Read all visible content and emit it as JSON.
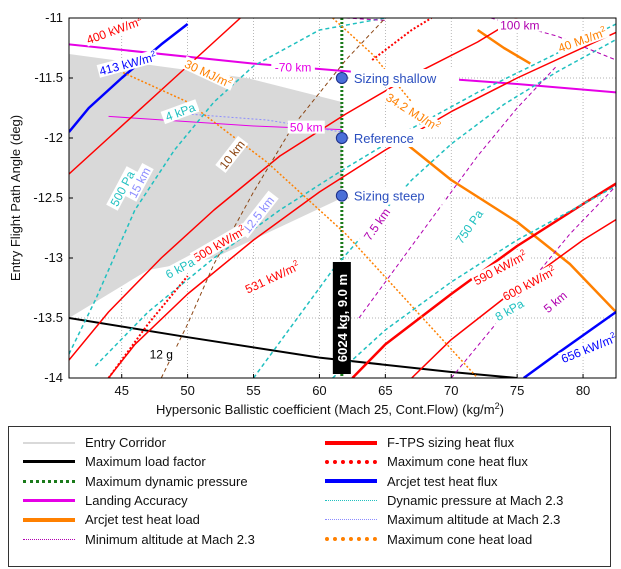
{
  "chart_data": {
    "type": "line",
    "xlabel": "Hypersonic Ballistic coefficient (Mach 25, Cont.Flow) (kg/m",
    "xlabel_sup": "2",
    "xlabel_end": ")",
    "ylabel": "Entry Flight Path Angle (deg)",
    "xlim": [
      41,
      82.5
    ],
    "ylim": [
      -14,
      -11
    ],
    "xticks": [
      45,
      50,
      55,
      60,
      65,
      70,
      75,
      80
    ],
    "yticks": [
      -11,
      -11.5,
      -12,
      -12.5,
      -13,
      -13.5,
      -14
    ],
    "grid": true,
    "corridor": [
      [
        41,
        -11.3
      ],
      [
        54.5,
        -11.5
      ],
      [
        61.7,
        -11.7
      ],
      [
        61.7,
        -12.5
      ],
      [
        52,
        -13
      ],
      [
        47,
        -13.1
      ],
      [
        41,
        -13.5
      ]
    ],
    "series": [
      {
        "name": "Maximum load factor",
        "color": "#000000",
        "style": "solid",
        "width": 2,
        "points": [
          [
            41,
            -13.5
          ],
          [
            50,
            -13.66
          ],
          [
            60,
            -13.83
          ],
          [
            70,
            -13.95
          ],
          [
            75,
            -14
          ]
        ]
      },
      {
        "name": "Maximum dynamic pressure",
        "color": "#1a7a1a",
        "style": "dotted",
        "width": 3,
        "points": [
          [
            61.7,
            -11
          ],
          [
            61.7,
            -14
          ]
        ]
      },
      {
        "name": "Landing Accuracy",
        "color": "#e600e6",
        "style": "solid",
        "width": 2,
        "points": [
          [
            41,
            -11.22
          ],
          [
            55,
            -11.38
          ],
          [
            65,
            -11.47
          ],
          [
            75,
            -11.55
          ],
          [
            82.5,
            -11.62
          ]
        ]
      },
      {
        "name": "Landing Accuracy",
        "color": "#e600e6",
        "style": "solid",
        "width": 1,
        "points": [
          [
            44,
            -11.82
          ],
          [
            55,
            -11.9
          ],
          [
            61.7,
            -11.93
          ]
        ]
      },
      {
        "name": "Arcjet test heat load",
        "color": "#ff8000",
        "style": "solid",
        "width": 2.5,
        "points": [
          [
            65.7,
            -11.97
          ],
          [
            70,
            -12.35
          ],
          [
            75,
            -12.7
          ],
          [
            79,
            -13.05
          ],
          [
            82.5,
            -13.45
          ]
        ]
      },
      {
        "name": "Arcjet test heat load",
        "color": "#ff8000",
        "style": "solid",
        "width": 2.5,
        "points": [
          [
            72,
            -11.1
          ],
          [
            74,
            -11.25
          ],
          [
            76,
            -11.38
          ]
        ]
      },
      {
        "name": "F-TPS sizing heat flux",
        "color": "#ff0000",
        "style": "solid",
        "width": 1.5,
        "points": [
          [
            41,
            -12.3
          ],
          [
            44,
            -12
          ],
          [
            48,
            -11.6
          ],
          [
            52,
            -11.2
          ],
          [
            54,
            -11
          ]
        ]
      },
      {
        "name": "F-TPS sizing heat flux",
        "color": "#ff0000",
        "style": "solid",
        "width": 1.5,
        "points": [
          [
            41,
            -13.85
          ],
          [
            44,
            -13.45
          ],
          [
            48,
            -13
          ],
          [
            52,
            -12.6
          ],
          [
            57,
            -12.15
          ],
          [
            62,
            -11.8
          ],
          [
            67,
            -11.48
          ],
          [
            72,
            -11.2
          ],
          [
            75,
            -11
          ]
        ]
      },
      {
        "name": "F-TPS sizing heat flux",
        "color": "#ff0000",
        "style": "solid",
        "width": 1.5,
        "points": [
          [
            44,
            -14
          ],
          [
            46,
            -13.72
          ],
          [
            50,
            -13.3
          ],
          [
            55,
            -12.85
          ],
          [
            60,
            -12.45
          ],
          [
            65,
            -12.1
          ],
          [
            70,
            -11.78
          ],
          [
            75,
            -11.5
          ],
          [
            82.5,
            -11.12
          ]
        ]
      },
      {
        "name": "F-TPS sizing heat flux",
        "color": "#ff0000",
        "style": "solid",
        "width": 2.5,
        "points": [
          [
            62.5,
            -14
          ],
          [
            65,
            -13.72
          ],
          [
            70,
            -13.3
          ],
          [
            75,
            -12.9
          ],
          [
            80,
            -12.55
          ],
          [
            82.5,
            -12.38
          ]
        ]
      },
      {
        "name": "F-TPS sizing heat flux",
        "color": "#ff0000",
        "style": "solid",
        "width": 1.5,
        "points": [
          [
            67,
            -14
          ],
          [
            70,
            -13.68
          ],
          [
            75,
            -13.25
          ],
          [
            80,
            -12.85
          ],
          [
            82.5,
            -12.68
          ]
        ]
      },
      {
        "name": "Arcjet test heat flux",
        "color": "#0000ff",
        "style": "solid",
        "width": 2.5,
        "points": [
          [
            41,
            -11.95
          ],
          [
            42.5,
            -11.75
          ],
          [
            45,
            -11.5
          ],
          [
            48,
            -11.22
          ],
          [
            50,
            -11.05
          ]
        ]
      },
      {
        "name": "Arcjet test heat flux",
        "color": "#0000ff",
        "style": "solid",
        "width": 2.5,
        "points": [
          [
            75.5,
            -14
          ],
          [
            78,
            -13.8
          ],
          [
            82.5,
            -13.45
          ]
        ]
      },
      {
        "name": "Dynamic pressure at Mach 2.3",
        "color": "#20c0c0",
        "style": "dashed",
        "width": 1.5,
        "points": [
          [
            41,
            -13.8
          ],
          [
            43,
            -13.35
          ],
          [
            46,
            -12.6
          ],
          [
            49,
            -12.1
          ],
          [
            52,
            -11.7
          ],
          [
            55,
            -11.4
          ],
          [
            60,
            -11.1
          ],
          [
            65,
            -11
          ]
        ]
      },
      {
        "name": "Dynamic pressure at Mach 2.3",
        "color": "#20c0c0",
        "style": "dashed",
        "width": 1.5,
        "points": [
          [
            43,
            -13.9
          ],
          [
            47,
            -13.45
          ],
          [
            52,
            -13
          ],
          [
            57,
            -12.6
          ],
          [
            62,
            -12.25
          ],
          [
            67,
            -11.92
          ],
          [
            72,
            -11.62
          ],
          [
            77,
            -11.35
          ],
          [
            82.5,
            -11.05
          ]
        ]
      },
      {
        "name": "Dynamic pressure at Mach 2.3",
        "color": "#20c0c0",
        "style": "dashed",
        "width": 1.5,
        "points": [
          [
            61,
            -14
          ],
          [
            65,
            -13.6
          ],
          [
            70,
            -13.2
          ],
          [
            75,
            -12.85
          ],
          [
            80,
            -12.55
          ],
          [
            82.5,
            -12.4
          ]
        ]
      },
      {
        "name": "Dynamic pressure at Mach 2.3",
        "color": "#20c0c0",
        "style": "dashed",
        "width": 1.5,
        "points": [
          [
            55,
            -14
          ],
          [
            58,
            -13.55
          ],
          [
            61,
            -13.1
          ],
          [
            64,
            -12.72
          ],
          [
            67,
            -12.35
          ],
          [
            70,
            -12.05
          ],
          [
            74,
            -11.72
          ],
          [
            78,
            -11.45
          ],
          [
            82.5,
            -11.18
          ]
        ]
      },
      {
        "name": "Maximum altitude at Mach 2.3",
        "color": "#8c8cff",
        "style": "dotted",
        "width": 1,
        "points": [
          [
            50,
            -11.8
          ],
          [
            56,
            -11.85
          ],
          [
            61.7,
            -11.95
          ]
        ]
      },
      {
        "name": "Minimum altitude at Mach 2.3",
        "color": "#b000b0",
        "style": "dashed",
        "width": 1,
        "points": [
          [
            63,
            -13.5
          ],
          [
            66,
            -13.05
          ],
          [
            69,
            -12.6
          ],
          [
            72,
            -12.15
          ],
          [
            75,
            -11.75
          ],
          [
            78,
            -11.4
          ]
        ]
      },
      {
        "name": "Minimum altitude at Mach 2.3",
        "color": "#b000b0",
        "style": "dashed",
        "width": 1,
        "points": [
          [
            70,
            -14
          ],
          [
            73,
            -13.6
          ],
          [
            76,
            -13.2
          ],
          [
            79,
            -12.8
          ],
          [
            82.5,
            -12.4
          ]
        ]
      },
      {
        "name": "Minimum altitude at Mach 2.3",
        "color": "#b000b0",
        "style": "dashed",
        "width": 1,
        "points": [
          [
            62,
            -11
          ],
          [
            65,
            -11.02
          ]
        ]
      },
      {
        "name": "Minimum altitude at Mach 2.3",
        "color": "#b000b0",
        "style": "dashed",
        "width": 1,
        "points": [
          [
            73,
            -11
          ],
          [
            78,
            -11.15
          ],
          [
            82.5,
            -11.35
          ]
        ]
      },
      {
        "name": "Minimum altitude at Mach 2.3",
        "color": "#8b4513",
        "style": "dashed",
        "width": 1,
        "points": [
          [
            48,
            -14
          ],
          [
            50,
            -13.55
          ],
          [
            52,
            -13.05
          ],
          [
            55,
            -12.45
          ],
          [
            58,
            -11.9
          ],
          [
            62,
            -11.35
          ],
          [
            65,
            -11
          ]
        ]
      },
      {
        "name": "Maximum cone heat load",
        "color": "#ff8000",
        "style": "dotted",
        "width": 1.5,
        "points": [
          [
            44,
            -11.4
          ],
          [
            50,
            -11.7
          ],
          [
            56,
            -12.2
          ],
          [
            62,
            -12.8
          ],
          [
            67,
            -13.4
          ],
          [
            72,
            -14
          ]
        ]
      },
      {
        "name": "Maximum cone heat load",
        "color": "#ff8000",
        "style": "dotted",
        "width": 1.5,
        "points": [
          [
            61,
            -11
          ],
          [
            64,
            -11.3
          ],
          [
            67,
            -11.7
          ]
        ]
      },
      {
        "name": "Maximum cone heat flux",
        "color": "#ff0000",
        "style": "dotted",
        "width": 2,
        "points": [
          [
            44,
            -14
          ],
          [
            47,
            -13.55
          ],
          [
            50,
            -13.15
          ]
        ]
      },
      {
        "name": "Maximum cone heat flux",
        "color": "#ff0000",
        "style": "dotted",
        "width": 2,
        "points": [
          [
            64,
            -11.35
          ],
          [
            67,
            -11.1
          ],
          [
            68.5,
            -11
          ]
        ]
      }
    ],
    "points": [
      {
        "label": "Sizing shallow",
        "x": 61.7,
        "y": -11.5
      },
      {
        "label": "Reference",
        "x": 61.7,
        "y": -12
      },
      {
        "label": "Sizing steep",
        "x": 61.7,
        "y": -12.48
      }
    ],
    "annotations": [
      {
        "text": "400 kW/m",
        "sup": "2",
        "x": 44.5,
        "y": -11.12,
        "color": "#ff0000",
        "angle": -20
      },
      {
        "text": "413 kW/m",
        "sup": "2",
        "x": 45.5,
        "y": -11.4,
        "color": "#0000ff",
        "angle": -15
      },
      {
        "text": "30 MJ/m",
        "sup": "2",
        "x": 51.5,
        "y": -11.48,
        "color": "#ff8000",
        "angle": 25
      },
      {
        "text": "-70 km",
        "x": 58,
        "y": -11.43,
        "color": "#e600e6",
        "angle": 0
      },
      {
        "text": "4 kPa",
        "x": 49.5,
        "y": -11.8,
        "color": "#20c0c0",
        "angle": -20
      },
      {
        "text": "34.2 MJ/m",
        "sup": "2",
        "x": 67,
        "y": -11.8,
        "color": "#ff8000",
        "angle": 32
      },
      {
        "text": "50 km",
        "x": 59,
        "y": -11.93,
        "color": "#e600e6",
        "angle": 0
      },
      {
        "text": "10 km",
        "x": 53.5,
        "y": -12.15,
        "color": "#8b4513",
        "angle": -52
      },
      {
        "text": "500 Pa",
        "x": 45.2,
        "y": -12.43,
        "color": "#20c0c0",
        "angle": -62
      },
      {
        "text": "15 km",
        "x": 46.5,
        "y": -12.38,
        "color": "#8c8cff",
        "angle": -62
      },
      {
        "text": "12.5 km",
        "x": 55.5,
        "y": -12.65,
        "color": "#8c8cff",
        "angle": -52
      },
      {
        "text": "7.5 km",
        "x": 64.5,
        "y": -12.73,
        "color": "#b000b0",
        "angle": -55
      },
      {
        "text": "750 Pa",
        "x": 71.5,
        "y": -12.75,
        "color": "#20c0c0",
        "angle": -55
      },
      {
        "text": "500 kW/m",
        "sup": "2",
        "x": 52.5,
        "y": -12.9,
        "color": "#ff0000",
        "angle": -30
      },
      {
        "text": "6 kPa",
        "x": 49.5,
        "y": -13.1,
        "color": "#20c0c0",
        "angle": -28
      },
      {
        "text": "531 kW/m",
        "sup": "2",
        "x": 56.5,
        "y": -13.18,
        "color": "#ff0000",
        "angle": -25
      },
      {
        "text": "590 kW/m",
        "sup": "2",
        "x": 73.8,
        "y": -13.1,
        "color": "#ff0000",
        "angle": -28
      },
      {
        "text": "600 kW/m",
        "sup": "2",
        "x": 76,
        "y": -13.23,
        "color": "#ff0000",
        "angle": -28
      },
      {
        "text": "8 kPa",
        "x": 74.5,
        "y": -13.45,
        "color": "#20c0c0",
        "angle": -30
      },
      {
        "text": "5 km",
        "x": 78,
        "y": -13.38,
        "color": "#b000b0",
        "angle": -40
      },
      {
        "text": "656 kW/m",
        "sup": "2",
        "x": 80.5,
        "y": -13.77,
        "color": "#0000ff",
        "angle": -22
      },
      {
        "text": "12 g",
        "x": 48,
        "y": -13.82,
        "color": "#000000",
        "angle": 0
      },
      {
        "text": "100 km",
        "x": 75.2,
        "y": -11.08,
        "color": "#b000b0",
        "angle": 0
      },
      {
        "text": "40 MJ/m",
        "sup": "2",
        "x": 80,
        "y": -11.2,
        "color": "#ff8000",
        "angle": -20
      }
    ],
    "marker_label": "6024 kg, 9.0 m",
    "legend": [
      {
        "label": "Entry Corridor",
        "color": "#d9d9d9",
        "style": "solid",
        "w": 2
      },
      {
        "label": "Maximum load factor",
        "color": "#000000",
        "style": "solid",
        "w": 3
      },
      {
        "label": "Maximum dynamic pressure",
        "color": "#1a7a1a",
        "style": "dotted",
        "w": 3
      },
      {
        "label": "Landing Accuracy",
        "color": "#e600e6",
        "style": "solid",
        "w": 3
      },
      {
        "label": "Arcjet test heat load",
        "color": "#ff8000",
        "style": "solid",
        "w": 4
      },
      {
        "label": "Minimum altitude at Mach 2.3",
        "color": "#b000b0",
        "style": "dotted",
        "w": 1
      },
      {
        "label": "F-TPS sizing heat flux",
        "color": "#ff0000",
        "style": "solid",
        "w": 4
      },
      {
        "label": "Maximum cone heat flux",
        "color": "#ff0000",
        "style": "dotted",
        "w": 4
      },
      {
        "label": "Arcjet test heat flux",
        "color": "#0000ff",
        "style": "solid",
        "w": 4
      },
      {
        "label": "Dynamic pressure at Mach 2.3",
        "color": "#20c0c0",
        "style": "dotted",
        "w": 1
      },
      {
        "label": "Maximum altitude at Mach 2.3",
        "color": "#8c8cff",
        "style": "dotted",
        "w": 1
      },
      {
        "label": "Maximum cone heat load",
        "color": "#ff8000",
        "style": "dotted",
        "w": 4
      }
    ]
  }
}
